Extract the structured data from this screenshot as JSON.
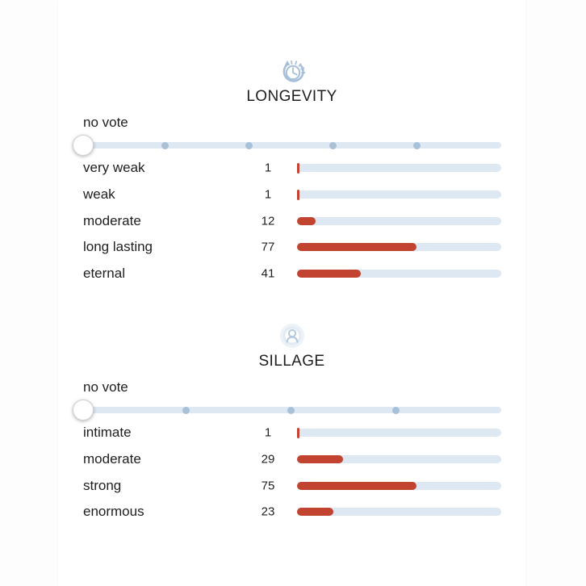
{
  "colors": {
    "accent_red": "#c2432f",
    "track_blue": "#dee8f3",
    "dot_blue": "#a9c1d7",
    "icon_blue": "#a6bfd8",
    "text": "#1e1e1e",
    "handle_border": "#d2d2d2"
  },
  "sections": [
    {
      "title": "LONGEVITY",
      "icon": "clock-history-icon",
      "no_vote_label": "no vote",
      "slider": {
        "selected": "no vote"
      },
      "options": [
        {
          "label": "very weak",
          "votes": 1
        },
        {
          "label": "weak",
          "votes": 1
        },
        {
          "label": "moderate",
          "votes": 12
        },
        {
          "label": "long lasting",
          "votes": 77
        },
        {
          "label": "eternal",
          "votes": 41
        }
      ]
    },
    {
      "title": "SILLAGE",
      "icon": "person-aura-icon",
      "no_vote_label": "no vote",
      "slider": {
        "selected": "no vote"
      },
      "options": [
        {
          "label": "intimate",
          "votes": 1
        },
        {
          "label": "moderate",
          "votes": 29
        },
        {
          "label": "strong",
          "votes": 75
        },
        {
          "label": "enormous",
          "votes": 23
        }
      ]
    }
  ]
}
